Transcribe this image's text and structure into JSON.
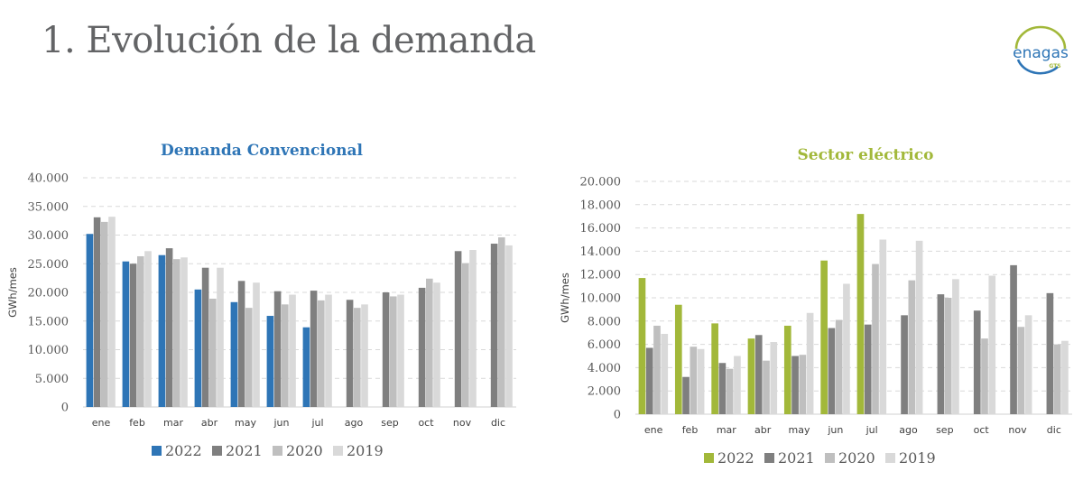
{
  "page": {
    "title": "1. Evolución de la demanda",
    "logo": {
      "name": "enagas",
      "sub": "GTS",
      "colors": {
        "arc_top": "#A2B83A",
        "arc_bottom": "#2E75B6",
        "text": "#2E75B6",
        "sub_text": "#A2B83A"
      }
    }
  },
  "chart_data": [
    {
      "id": "demanda-convencional",
      "type": "bar",
      "title": "Demanda Convencional",
      "title_color": "#2E75B6",
      "xlabel": "",
      "ylabel": "GWh/mes",
      "ylim": [
        0,
        40000
      ],
      "yticks": [
        0,
        5000,
        10000,
        15000,
        20000,
        25000,
        30000,
        35000,
        40000
      ],
      "ytick_labels": [
        "0",
        "5.000",
        "10.000",
        "15.000",
        "20.000",
        "25.000",
        "30.000",
        "35.000",
        "40.000"
      ],
      "grid": true,
      "legend": "bottom",
      "categories": [
        "ene",
        "feb",
        "mar",
        "abr",
        "may",
        "jun",
        "jul",
        "ago",
        "sep",
        "oct",
        "nov",
        "dic"
      ],
      "series": [
        {
          "name": "2022",
          "color": "#2E75B6",
          "values": [
            30200,
            25400,
            26500,
            20500,
            18300,
            15900,
            13900,
            null,
            null,
            null,
            null,
            null
          ]
        },
        {
          "name": "2021",
          "color": "#7F7F7F",
          "values": [
            33100,
            25000,
            27700,
            24300,
            22000,
            20200,
            20300,
            18700,
            20000,
            20800,
            27200,
            28500
          ]
        },
        {
          "name": "2020",
          "color": "#BFBFBF",
          "values": [
            32300,
            26300,
            25800,
            18900,
            17300,
            17900,
            18600,
            17300,
            19300,
            22400,
            25100,
            29600
          ]
        },
        {
          "name": "2019",
          "color": "#D9D9D9",
          "values": [
            33200,
            27200,
            26100,
            24300,
            21700,
            19600,
            19600,
            17900,
            19600,
            21700,
            27400,
            28200
          ]
        }
      ]
    },
    {
      "id": "sector-electrico",
      "type": "bar",
      "title": "Sector eléctrico",
      "title_color": "#A2B83A",
      "xlabel": "",
      "ylabel": "GWh/mes",
      "ylim": [
        0,
        20000
      ],
      "yticks": [
        0,
        2000,
        4000,
        6000,
        8000,
        10000,
        12000,
        14000,
        16000,
        18000,
        20000
      ],
      "ytick_labels": [
        "0",
        "2.000",
        "4.000",
        "6.000",
        "8.000",
        "10.000",
        "12.000",
        "14.000",
        "16.000",
        "18.000",
        "20.000"
      ],
      "grid": true,
      "legend": "bottom",
      "categories": [
        "ene",
        "feb",
        "mar",
        "abr",
        "may",
        "jun",
        "jul",
        "ago",
        "sep",
        "oct",
        "nov",
        "dic"
      ],
      "series": [
        {
          "name": "2022",
          "color": "#A2B83A",
          "values": [
            11700,
            9400,
            7800,
            6500,
            7600,
            13200,
            17200,
            null,
            null,
            null,
            null,
            null
          ]
        },
        {
          "name": "2021",
          "color": "#7F7F7F",
          "values": [
            5700,
            3200,
            4400,
            6800,
            5000,
            7400,
            7700,
            8500,
            10300,
            8900,
            12800,
            10400
          ]
        },
        {
          "name": "2020",
          "color": "#BFBFBF",
          "values": [
            7600,
            5800,
            3900,
            4600,
            5100,
            8100,
            12900,
            11500,
            10000,
            6500,
            7500,
            6000
          ]
        },
        {
          "name": "2019",
          "color": "#D9D9D9",
          "values": [
            6900,
            5600,
            5000,
            6200,
            8700,
            11200,
            15000,
            14900,
            11600,
            11900,
            8500,
            6300
          ]
        }
      ]
    }
  ]
}
